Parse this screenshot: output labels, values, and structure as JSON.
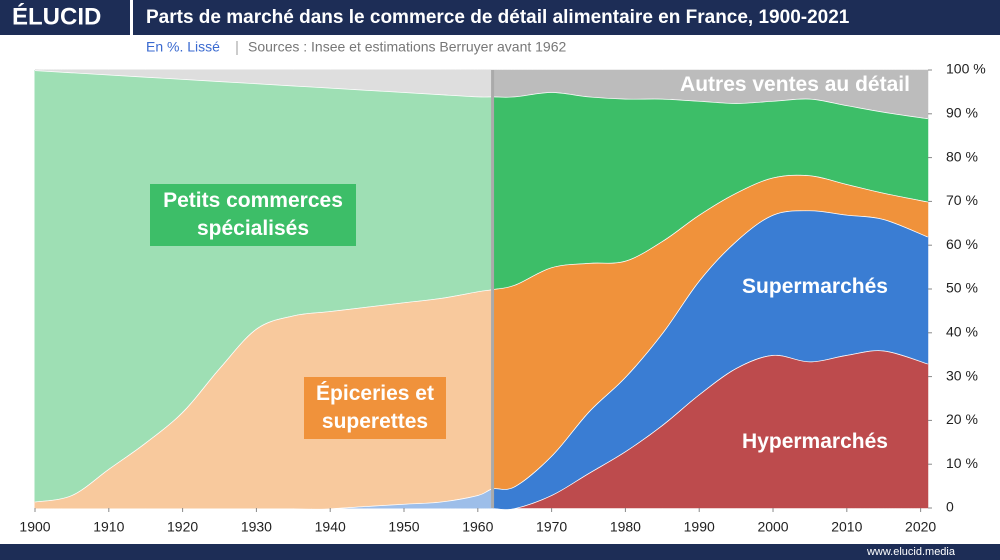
{
  "brand": "ÉLUCID",
  "footer": "www.elucid.media",
  "chart_data": {
    "type": "stacked_area",
    "title": "Parts de marché dans le commerce de détail alimentaire en France, 1900-2021",
    "subtitle": "En %. Lissé",
    "source": "Sources : Insee et estimations Berruyer avant 1962",
    "break_year": 1962,
    "x": [
      1900,
      1905,
      1910,
      1915,
      1920,
      1925,
      1930,
      1935,
      1940,
      1945,
      1950,
      1955,
      1960,
      1962,
      1965,
      1970,
      1975,
      1980,
      1985,
      1990,
      1995,
      2000,
      2005,
      2010,
      2015,
      2021
    ],
    "xlim": [
      1900,
      2021
    ],
    "xticks": [
      1900,
      1910,
      1920,
      1930,
      1940,
      1950,
      1960,
      1970,
      1980,
      1990,
      2000,
      2010,
      2020
    ],
    "ylim": [
      0,
      100
    ],
    "yticks": [
      {
        "value": 0,
        "label": "0"
      },
      {
        "value": 10,
        "label": "10 %"
      },
      {
        "value": 20,
        "label": "20 %"
      },
      {
        "value": 30,
        "label": "30 %"
      },
      {
        "value": 40,
        "label": "40 %"
      },
      {
        "value": 50,
        "label": "50 %"
      },
      {
        "value": 60,
        "label": "60 %"
      },
      {
        "value": 70,
        "label": "70 %"
      },
      {
        "value": 80,
        "label": "80 %"
      },
      {
        "value": 90,
        "label": "90 %"
      },
      {
        "value": 100,
        "label": "100 %"
      }
    ],
    "series": [
      {
        "name": "Hypermarchés",
        "color": "#bd4b4d",
        "values": [
          0,
          0,
          0,
          0,
          0,
          0,
          0,
          0,
          0,
          0,
          0,
          0,
          0,
          0,
          0,
          3,
          8,
          13,
          19,
          26,
          32,
          35,
          33.5,
          35,
          36,
          33
        ]
      },
      {
        "name": "Supermarchés",
        "color": "#3a7dd3",
        "values": [
          0,
          0,
          0,
          0,
          0,
          0,
          0,
          0,
          0,
          0.5,
          1,
          1.5,
          3,
          4.5,
          5,
          9,
          14,
          17,
          21,
          26,
          29,
          32,
          34.5,
          32,
          30,
          29
        ]
      },
      {
        "name": "Épiceries et superettes",
        "color": "#f0923b",
        "values": [
          1.5,
          3,
          9,
          15,
          22,
          32,
          41,
          44,
          45,
          45.5,
          46,
          46.5,
          46.5,
          45.5,
          46,
          43,
          34,
          26.5,
          21,
          15,
          11,
          8.5,
          8,
          7,
          6,
          8
        ]
      },
      {
        "name": "Petits commerces spécialisés",
        "color": "#3dbe68",
        "values": [
          98.5,
          96.5,
          90,
          83.5,
          76,
          65.5,
          56,
          52.5,
          51,
          49.5,
          48,
          46.5,
          44.5,
          44,
          43,
          40,
          38,
          37,
          32.5,
          26,
          20.5,
          17.5,
          17.5,
          18,
          18.5,
          19
        ]
      },
      {
        "name": "Autres ventes au détail",
        "color": "#bcbcbc",
        "values": [
          0,
          0.5,
          1,
          1.5,
          2,
          2.5,
          3,
          3.5,
          4,
          4.5,
          5,
          5.5,
          6,
          6,
          6,
          5,
          6,
          6.5,
          6.5,
          7,
          7.5,
          7,
          6.5,
          8,
          9.5,
          11
        ]
      }
    ]
  }
}
